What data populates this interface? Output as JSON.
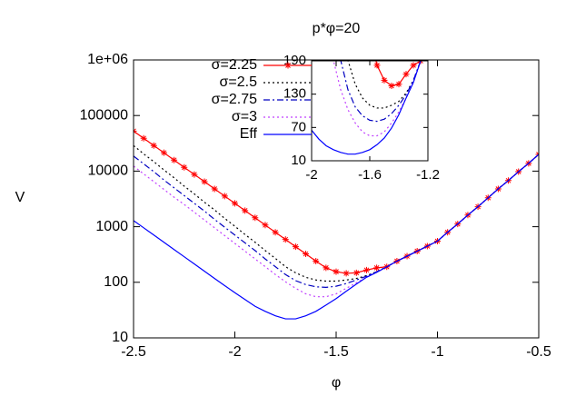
{
  "chart_data": [
    {
      "type": "line",
      "title": "p*φ=20",
      "xlabel": "φ",
      "ylabel": "V",
      "x": [
        -2.5,
        -2.45,
        -2.4,
        -2.35,
        -2.3,
        -2.25,
        -2.2,
        -2.15,
        -2.1,
        -2.05,
        -2,
        -1.95,
        -1.9,
        -1.85,
        -1.8,
        -1.75,
        -1.7,
        -1.65,
        -1.6,
        -1.55,
        -1.5,
        -1.45,
        -1.4,
        -1.35,
        -1.3,
        -1.25,
        -1.2,
        -1.15,
        -1.1,
        -1.05,
        -1,
        -0.95,
        -0.9,
        -0.85,
        -0.8,
        -0.75,
        -0.7,
        -0.65,
        -0.6,
        -0.55,
        -0.5
      ],
      "series": [
        {
          "name": "σ=2.25",
          "color": "#ff0000",
          "dash": "solid",
          "marker": "asterisk",
          "values": [
            52500,
            38900,
            28800,
            21400,
            15800,
            11700,
            8710,
            6460,
            4790,
            3550,
            2630,
            1950,
            1450,
            1070,
            794,
            589,
            437,
            324,
            240,
            182,
            155,
            145,
            148,
            166,
            182,
            190,
            240,
            295,
            363,
            447,
            550,
            794,
            1120,
            1620,
            2290,
            3310,
            4790,
            6760,
            9770,
            13800,
            20000
          ]
        },
        {
          "name": "σ=2.5",
          "color": "#000000",
          "dash": "dotted",
          "values": [
            28800,
            20400,
            14800,
            10500,
            7590,
            5370,
            3890,
            2750,
            2000,
            1410,
            1020,
            724,
            525,
            372,
            269,
            191,
            148,
            123,
            110,
            105,
            105,
            110,
            117,
            132,
            155,
            190,
            240,
            295,
            363,
            447,
            550,
            794,
            1120,
            1620,
            2290,
            3310,
            4790,
            6760,
            9770,
            13800,
            20000
          ]
        },
        {
          "name": "σ=2.75",
          "color": "#0000c0",
          "dash": "dash-dot",
          "values": [
            18600,
            13500,
            9770,
            6920,
            5010,
            3630,
            2630,
            1910,
            1350,
            977,
            708,
            513,
            372,
            263,
            191,
            138,
            107,
            91,
            83,
            81,
            85,
            95,
            110,
            129,
            155,
            190,
            240,
            295,
            363,
            447,
            550,
            794,
            1120,
            1620,
            2290,
            3310,
            4790,
            6760,
            9770,
            13800,
            20000
          ]
        },
        {
          "name": "σ=3",
          "color": "#c040ff",
          "dash": "dotted",
          "values": [
            12300,
            8910,
            6460,
            4680,
            3390,
            2510,
            1820,
            1320,
            955,
            692,
            501,
            363,
            263,
            191,
            138,
            102,
            78,
            62,
            55,
            55,
            62,
            78,
            98,
            123,
            151,
            190,
            240,
            295,
            363,
            447,
            550,
            794,
            1120,
            1620,
            2290,
            3310,
            4790,
            6760,
            9770,
            13800,
            20000
          ]
        },
        {
          "name": "Eff",
          "color": "#0000ff",
          "dash": "solid",
          "values": [
            1290,
            955,
            708,
            525,
            389,
            288,
            214,
            158,
            117,
            87,
            65,
            49,
            37,
            30,
            25,
            22,
            22,
            25,
            30,
            39,
            51,
            69,
            93,
            123,
            151,
            190,
            240,
            295,
            363,
            447,
            550,
            794,
            1120,
            1620,
            2290,
            3310,
            4790,
            6760,
            9770,
            13800,
            20000
          ]
        }
      ],
      "xlim": [
        -2.5,
        -0.5
      ],
      "xticks": [
        -2.5,
        -2,
        -1.5,
        -1,
        -0.5
      ],
      "ylim": [
        10,
        1000000
      ],
      "ylog": true,
      "yticks": [
        10,
        100,
        1000,
        10000,
        100000,
        {
          "value": 1000000,
          "label": "1e+06"
        }
      ],
      "legend": "top-left"
    },
    {
      "type": "line",
      "xlim": [
        -2,
        -1.2
      ],
      "xticks": [
        -2,
        -1.6,
        -1.2
      ],
      "ylim": [
        10,
        190
      ],
      "yticks": [
        10,
        70,
        130,
        190
      ]
    }
  ]
}
